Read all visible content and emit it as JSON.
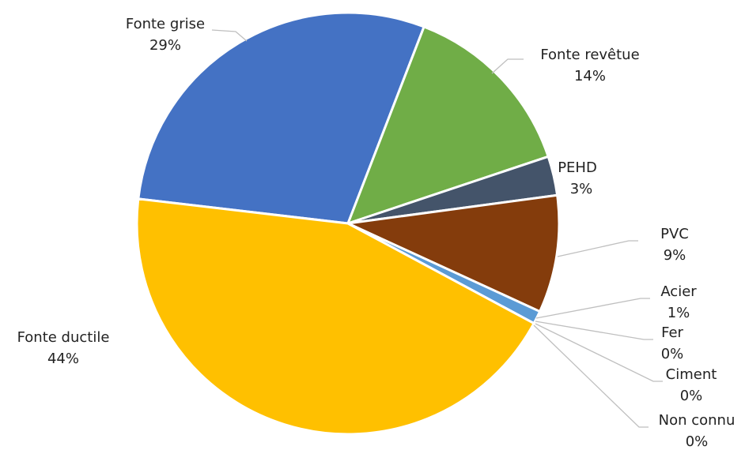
{
  "chart_data": {
    "type": "pie",
    "categories": [
      "Fonte grise",
      "Fonte revêtue",
      "PEHD",
      "PVC",
      "Acier",
      "Fer",
      "Ciment",
      "Non connu",
      "Fonte ductile"
    ],
    "values": [
      29,
      14,
      3,
      9,
      1,
      0,
      0,
      0,
      44
    ],
    "value_labels": [
      "29%",
      "14%",
      "3%",
      "9%",
      "1%",
      "0%",
      "0%",
      "0%",
      "44%"
    ],
    "colors": [
      "#4472c4",
      "#70ad47",
      "#44546a",
      "#843c0c",
      "#5b9bd5",
      "#a5a5a5",
      "#264478",
      "#9e480e",
      "#ffc000"
    ]
  }
}
